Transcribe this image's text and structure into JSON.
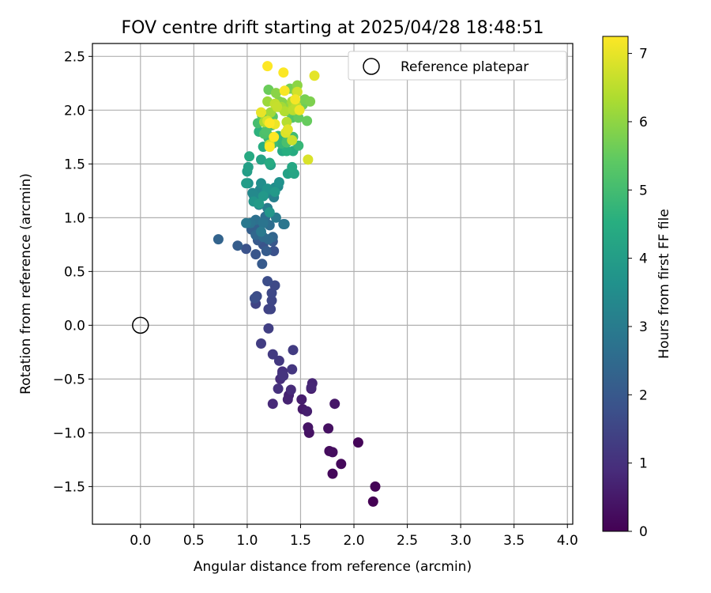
{
  "chart_data": {
    "type": "scatter",
    "title": "FOV centre drift starting at 2025/04/28 18:48:51",
    "xlabel": "Angular distance from reference (arcmin)",
    "ylabel": "Rotation from reference (arcmin)",
    "xlim": [
      -0.45,
      4.05
    ],
    "ylim": [
      -1.85,
      2.62
    ],
    "x_ticks": [
      0.0,
      0.5,
      1.0,
      1.5,
      2.0,
      2.5,
      3.0,
      3.5,
      4.0
    ],
    "x_tick_labels": [
      "0.0",
      "0.5",
      "1.0",
      "1.5",
      "2.0",
      "2.5",
      "3.0",
      "3.5",
      "4.0"
    ],
    "y_ticks": [
      -1.5,
      -1.0,
      -0.5,
      0.0,
      0.5,
      1.0,
      1.5,
      2.0,
      2.5
    ],
    "y_tick_labels": [
      "−1.5",
      "−1.0",
      "−0.5",
      "0.0",
      "0.5",
      "1.0",
      "1.5",
      "2.0",
      "2.5"
    ],
    "grid": true,
    "legend": {
      "position": "top-right",
      "entries": [
        "Reference platepar"
      ]
    },
    "reference_point": {
      "x": 0.0,
      "y": 0.0
    },
    "colorbar": {
      "label": "Hours from first FF file",
      "colormap": "viridis",
      "range": [
        0,
        7.25
      ],
      "ticks": [
        0,
        1,
        2,
        3,
        4,
        5,
        6,
        7
      ],
      "tick_labels": [
        "0",
        "1",
        "2",
        "3",
        "4",
        "5",
        "6",
        "7"
      ]
    },
    "series": [
      {
        "x": [
          2.18,
          2.2,
          2.04,
          1.8,
          1.88,
          1.77,
          1.8,
          1.76,
          1.58,
          1.57,
          1.82,
          1.6,
          1.52,
          1.51,
          1.56,
          1.39,
          1.38,
          1.61,
          1.6,
          1.24,
          1.41,
          1.31,
          1.33,
          1.29,
          1.33,
          1.34,
          1.42,
          1.3,
          1.24,
          1.43,
          1.13,
          1.2,
          1.2,
          1.08,
          1.22,
          1.23,
          1.23,
          1.26,
          1.09,
          1.19,
          1.07,
          1.25,
          0.99,
          1.15,
          1.08,
          1.24,
          1.1,
          1.14,
          1.18,
          0.91,
          1.04,
          1.07,
          1.12,
          0.73,
          1.24,
          1.08,
          1.17,
          1.2,
          1.15,
          1.21,
          1.17,
          1.08,
          1.34,
          1.03,
          1.15,
          1.35,
          0.99,
          1.13,
          1.27,
          1.19,
          1.09,
          1.11,
          1.25,
          1.14,
          1.24,
          1.17,
          1.12,
          1.05,
          1.06,
          1.29,
          1.26,
          1.13,
          1.18,
          1.01,
          1.3,
          1.19,
          1.06,
          1.21,
          1.15,
          1.26,
          1.11,
          0.99,
          1.0,
          1.01,
          1.22,
          1.38,
          1.13,
          1.44,
          1.42,
          1.33,
          1.02,
          1.21,
          1.43,
          1.15,
          1.37,
          1.22,
          1.11,
          1.17,
          1.29,
          1.32,
          1.48,
          1.2,
          1.38,
          1.24,
          1.43,
          1.23,
          1.1,
          1.37,
          1.16,
          1.18,
          1.16,
          1.42,
          1.24,
          1.14,
          1.3,
          1.38,
          1.48,
          1.56,
          1.2,
          1.52,
          1.35,
          1.4,
          1.54,
          1.59,
          1.3,
          1.33,
          1.27,
          1.47,
          1.4,
          1.44,
          1.46,
          1.19,
          1.22,
          1.32,
          1.42,
          1.16,
          1.43,
          1.35,
          1.37,
          1.43,
          1.46,
          1.26,
          1.28,
          1.42,
          1.21,
          1.47,
          1.19,
          1.57,
          1.36,
          1.38,
          1.63,
          1.13,
          1.26,
          1.49,
          1.45,
          1.35,
          1.34,
          1.19,
          1.21,
          1.25,
          1.21
        ],
        "y": [
          -1.64,
          -1.5,
          -1.09,
          -1.38,
          -1.29,
          -1.17,
          -1.18,
          -0.96,
          -1.0,
          -0.95,
          -0.73,
          -0.59,
          -0.78,
          -0.69,
          -0.8,
          -0.65,
          -0.69,
          -0.54,
          -0.58,
          -0.73,
          -0.6,
          -0.5,
          -0.43,
          -0.59,
          -0.45,
          -0.47,
          -0.41,
          -0.33,
          -0.27,
          -0.23,
          -0.17,
          -0.03,
          0.15,
          0.2,
          0.15,
          0.23,
          0.3,
          0.37,
          0.27,
          0.41,
          0.25,
          0.69,
          0.71,
          0.75,
          0.66,
          0.78,
          0.79,
          0.57,
          0.69,
          0.74,
          0.89,
          0.91,
          0.87,
          0.8,
          0.82,
          0.84,
          0.96,
          0.8,
          0.82,
          0.93,
          1.01,
          0.98,
          0.94,
          0.95,
          0.95,
          0.94,
          0.95,
          0.87,
          1.0,
          1.09,
          1.18,
          1.12,
          1.19,
          1.2,
          1.26,
          1.22,
          1.26,
          1.23,
          1.21,
          1.29,
          1.28,
          1.32,
          1.25,
          1.32,
          1.33,
          1.27,
          1.15,
          1.05,
          1.2,
          1.24,
          1.13,
          1.32,
          1.43,
          1.47,
          1.49,
          1.41,
          1.54,
          1.41,
          1.47,
          1.62,
          1.57,
          1.51,
          1.62,
          1.66,
          1.62,
          1.75,
          1.8,
          1.79,
          1.76,
          1.69,
          1.67,
          1.74,
          1.75,
          1.69,
          1.75,
          1.86,
          1.88,
          1.7,
          1.78,
          1.81,
          1.93,
          1.93,
          1.94,
          1.95,
          2.03,
          1.99,
          1.93,
          1.9,
          2.19,
          2.05,
          2.04,
          2.2,
          2.1,
          2.08,
          2.08,
          2.07,
          2.16,
          2.23,
          2.04,
          2.06,
          2.17,
          2.08,
          1.98,
          2.03,
          2.08,
          1.89,
          2.03,
          1.99,
          1.89,
          2.0,
          2.04,
          2.06,
          2.03,
          1.72,
          1.68,
          2.17,
          1.9,
          1.54,
          1.79,
          1.82,
          2.32,
          1.98,
          1.87,
          2.0,
          2.1,
          2.18,
          2.35,
          2.41,
          1.88,
          1.75,
          1.66
        ],
        "c": [
          0.0,
          0.04,
          0.09,
          0.13,
          0.17,
          0.22,
          0.26,
          0.3,
          0.35,
          0.39,
          0.44,
          0.48,
          0.52,
          0.57,
          0.61,
          0.65,
          0.7,
          0.74,
          0.78,
          0.83,
          0.87,
          0.91,
          0.96,
          1.0,
          1.05,
          1.09,
          1.13,
          1.18,
          1.22,
          1.26,
          1.31,
          1.35,
          1.39,
          1.44,
          1.48,
          1.52,
          1.57,
          1.61,
          1.66,
          1.7,
          1.74,
          1.79,
          1.83,
          1.87,
          1.92,
          1.96,
          2.0,
          2.05,
          2.09,
          2.13,
          2.18,
          2.22,
          2.27,
          2.31,
          2.35,
          2.4,
          2.44,
          2.48,
          2.53,
          2.57,
          2.61,
          2.66,
          2.7,
          2.74,
          2.79,
          2.83,
          2.88,
          2.92,
          2.96,
          3.01,
          3.05,
          3.09,
          3.14,
          3.18,
          3.22,
          3.27,
          3.31,
          3.35,
          3.4,
          3.44,
          3.49,
          3.53,
          3.57,
          3.62,
          3.66,
          3.7,
          3.75,
          3.79,
          3.83,
          3.88,
          3.92,
          3.96,
          4.01,
          4.05,
          4.1,
          4.14,
          4.18,
          4.23,
          4.27,
          4.31,
          4.36,
          4.4,
          4.44,
          4.49,
          4.53,
          4.57,
          4.62,
          4.66,
          4.71,
          4.75,
          4.79,
          4.84,
          4.88,
          4.92,
          4.97,
          5.01,
          5.05,
          5.1,
          5.14,
          5.18,
          5.23,
          5.27,
          5.32,
          5.36,
          5.4,
          5.45,
          5.49,
          5.53,
          5.58,
          5.62,
          5.66,
          5.71,
          5.75,
          5.79,
          5.84,
          5.88,
          5.93,
          5.97,
          6.01,
          6.06,
          6.1,
          6.14,
          6.19,
          6.23,
          6.27,
          6.32,
          6.36,
          6.4,
          6.45,
          6.49,
          6.54,
          6.58,
          6.62,
          6.67,
          6.71,
          6.75,
          6.8,
          6.84,
          6.88,
          6.93,
          6.97,
          7.01,
          7.06,
          7.1,
          7.15,
          7.19,
          7.23,
          7.27,
          7.3,
          7.32,
          7.35
        ]
      }
    ]
  }
}
